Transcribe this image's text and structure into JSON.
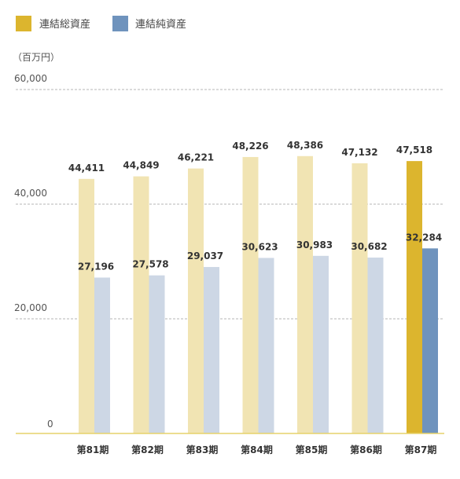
{
  "legend": {
    "items": [
      {
        "label": "連結総資産",
        "color": "#dcb52e"
      },
      {
        "label": "連結純資産",
        "color": "#6f93bd"
      }
    ]
  },
  "chart_data": {
    "type": "bar",
    "title": "",
    "xlabel": "",
    "ylabel": "（百万円）",
    "ylim": [
      0,
      60000
    ],
    "yticks": [
      {
        "value": 0,
        "label": "0"
      },
      {
        "value": 20000,
        "label": "20,000"
      },
      {
        "value": 40000,
        "label": "40,000"
      },
      {
        "value": 60000,
        "label": "60,000"
      }
    ],
    "grid": true,
    "legend_position": "top-left",
    "categories": [
      "第81期",
      "第82期",
      "第83期",
      "第84期",
      "第85期",
      "第86期",
      "第87期"
    ],
    "highlight_index": 6,
    "series": [
      {
        "name": "連結総資産",
        "values": [
          44411,
          44849,
          46221,
          48226,
          48386,
          47132,
          47518
        ],
        "labels": [
          "44,411",
          "44,849",
          "46,221",
          "48,226",
          "48,386",
          "47,132",
          "47,518"
        ],
        "color": "#dcb52e",
        "faded_color": "#f1e4b3"
      },
      {
        "name": "連結純資産",
        "values": [
          27196,
          27578,
          29037,
          30623,
          30983,
          30682,
          32284
        ],
        "labels": [
          "27,196",
          "27,578",
          "29,037",
          "30,623",
          "30,983",
          "30,682",
          "32,284"
        ],
        "color": "#6f93bd",
        "faded_color": "#cdd7e5"
      }
    ]
  }
}
